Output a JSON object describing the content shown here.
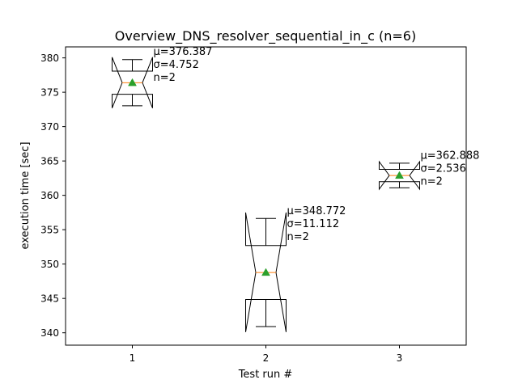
{
  "chart_data": {
    "type": "box",
    "title": "Overview_DNS_resolver_sequential_in_c (n=6)",
    "xlabel": "Test run #",
    "ylabel": "execution time [sec]",
    "categories": [
      "1",
      "2",
      "3"
    ],
    "x_ticks": [
      "1",
      "2",
      "3"
    ],
    "y_ticks": [
      "340",
      "345",
      "350",
      "355",
      "360",
      "365",
      "370",
      "375",
      "380"
    ],
    "xlim": [
      0.5,
      3.5
    ],
    "ylim": [
      338.2,
      381.6
    ],
    "grid": false,
    "colors": {
      "box": "#000000",
      "median": "#ff7f0e",
      "mean_marker": "#2ca02c"
    },
    "boxes": [
      {
        "position": 1,
        "mean": 376.387,
        "median": 376.387,
        "q1": 374.71,
        "q3": 378.07,
        "whisker_low": 373.03,
        "whisker_high": 379.75,
        "notch_low": 372.7,
        "notch_high": 380.1,
        "annotation": [
          "μ=376.387",
          "σ=4.752",
          "n=2"
        ]
      },
      {
        "position": 2,
        "mean": 348.772,
        "median": 348.772,
        "q1": 344.84,
        "q3": 352.7,
        "whisker_low": 340.9,
        "whisker_high": 356.63,
        "notch_low": 340.1,
        "notch_high": 357.5,
        "annotation": [
          "μ=348.772",
          "σ=11.112",
          "n=2"
        ]
      },
      {
        "position": 3,
        "mean": 362.888,
        "median": 362.888,
        "q1": 361.99,
        "q3": 363.78,
        "whisker_low": 361.09,
        "whisker_high": 364.68,
        "notch_low": 360.9,
        "notch_high": 364.9,
        "annotation": [
          "μ=362.888",
          "σ=2.536",
          "n=2"
        ]
      }
    ]
  }
}
